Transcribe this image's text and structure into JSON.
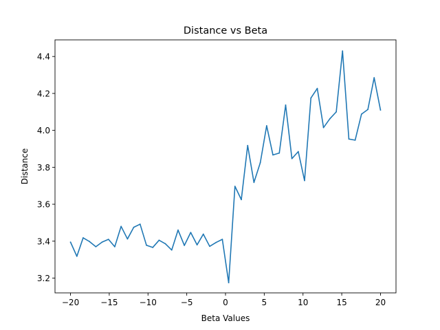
{
  "chart_data": {
    "type": "line",
    "title": "Distance vs Beta",
    "xlabel": "Beta Values",
    "ylabel": "Distance",
    "xlim": [
      -22.0,
      22.0
    ],
    "ylim": [
      3.12,
      4.49
    ],
    "xticks": [
      -20,
      -15,
      -10,
      -5,
      0,
      5,
      10,
      15,
      20
    ],
    "xtick_labels": [
      "−20",
      "−15",
      "−10",
      "−5",
      "0",
      "5",
      "10",
      "15",
      "20"
    ],
    "yticks": [
      3.2,
      3.4,
      3.6,
      3.8,
      4.0,
      4.2,
      4.4
    ],
    "ytick_labels": [
      "3.2",
      "3.4",
      "3.6",
      "3.8",
      "4.0",
      "4.2",
      "4.4"
    ],
    "grid": false,
    "series": [
      {
        "color": "#1f77b4",
        "x": [
          -20.0,
          -19.18,
          -18.37,
          -17.55,
          -16.73,
          -15.92,
          -15.1,
          -14.29,
          -13.47,
          -12.65,
          -11.84,
          -11.02,
          -10.2,
          -9.39,
          -8.57,
          -7.76,
          -6.94,
          -6.12,
          -5.31,
          -4.49,
          -3.67,
          -2.86,
          -2.04,
          -1.22,
          -0.41,
          0.41,
          1.22,
          2.04,
          2.86,
          3.67,
          4.49,
          5.31,
          6.12,
          6.94,
          7.76,
          8.57,
          9.39,
          10.2,
          11.02,
          11.84,
          12.65,
          13.47,
          14.29,
          15.1,
          15.92,
          16.73,
          17.55,
          18.37,
          19.18,
          20.0
        ],
        "y": [
          3.395,
          3.318,
          3.418,
          3.398,
          3.37,
          3.395,
          3.41,
          3.37,
          3.48,
          3.412,
          3.475,
          3.492,
          3.378,
          3.366,
          3.405,
          3.386,
          3.352,
          3.46,
          3.377,
          3.447,
          3.38,
          3.438,
          3.372,
          3.393,
          3.41,
          3.175,
          3.697,
          3.625,
          3.918,
          3.718,
          3.825,
          4.025,
          3.867,
          3.877,
          4.137,
          3.847,
          3.885,
          3.728,
          4.175,
          4.227,
          4.015,
          4.063,
          4.1,
          4.43,
          3.953,
          3.947,
          4.088,
          4.113,
          4.285,
          4.11
        ]
      }
    ]
  }
}
